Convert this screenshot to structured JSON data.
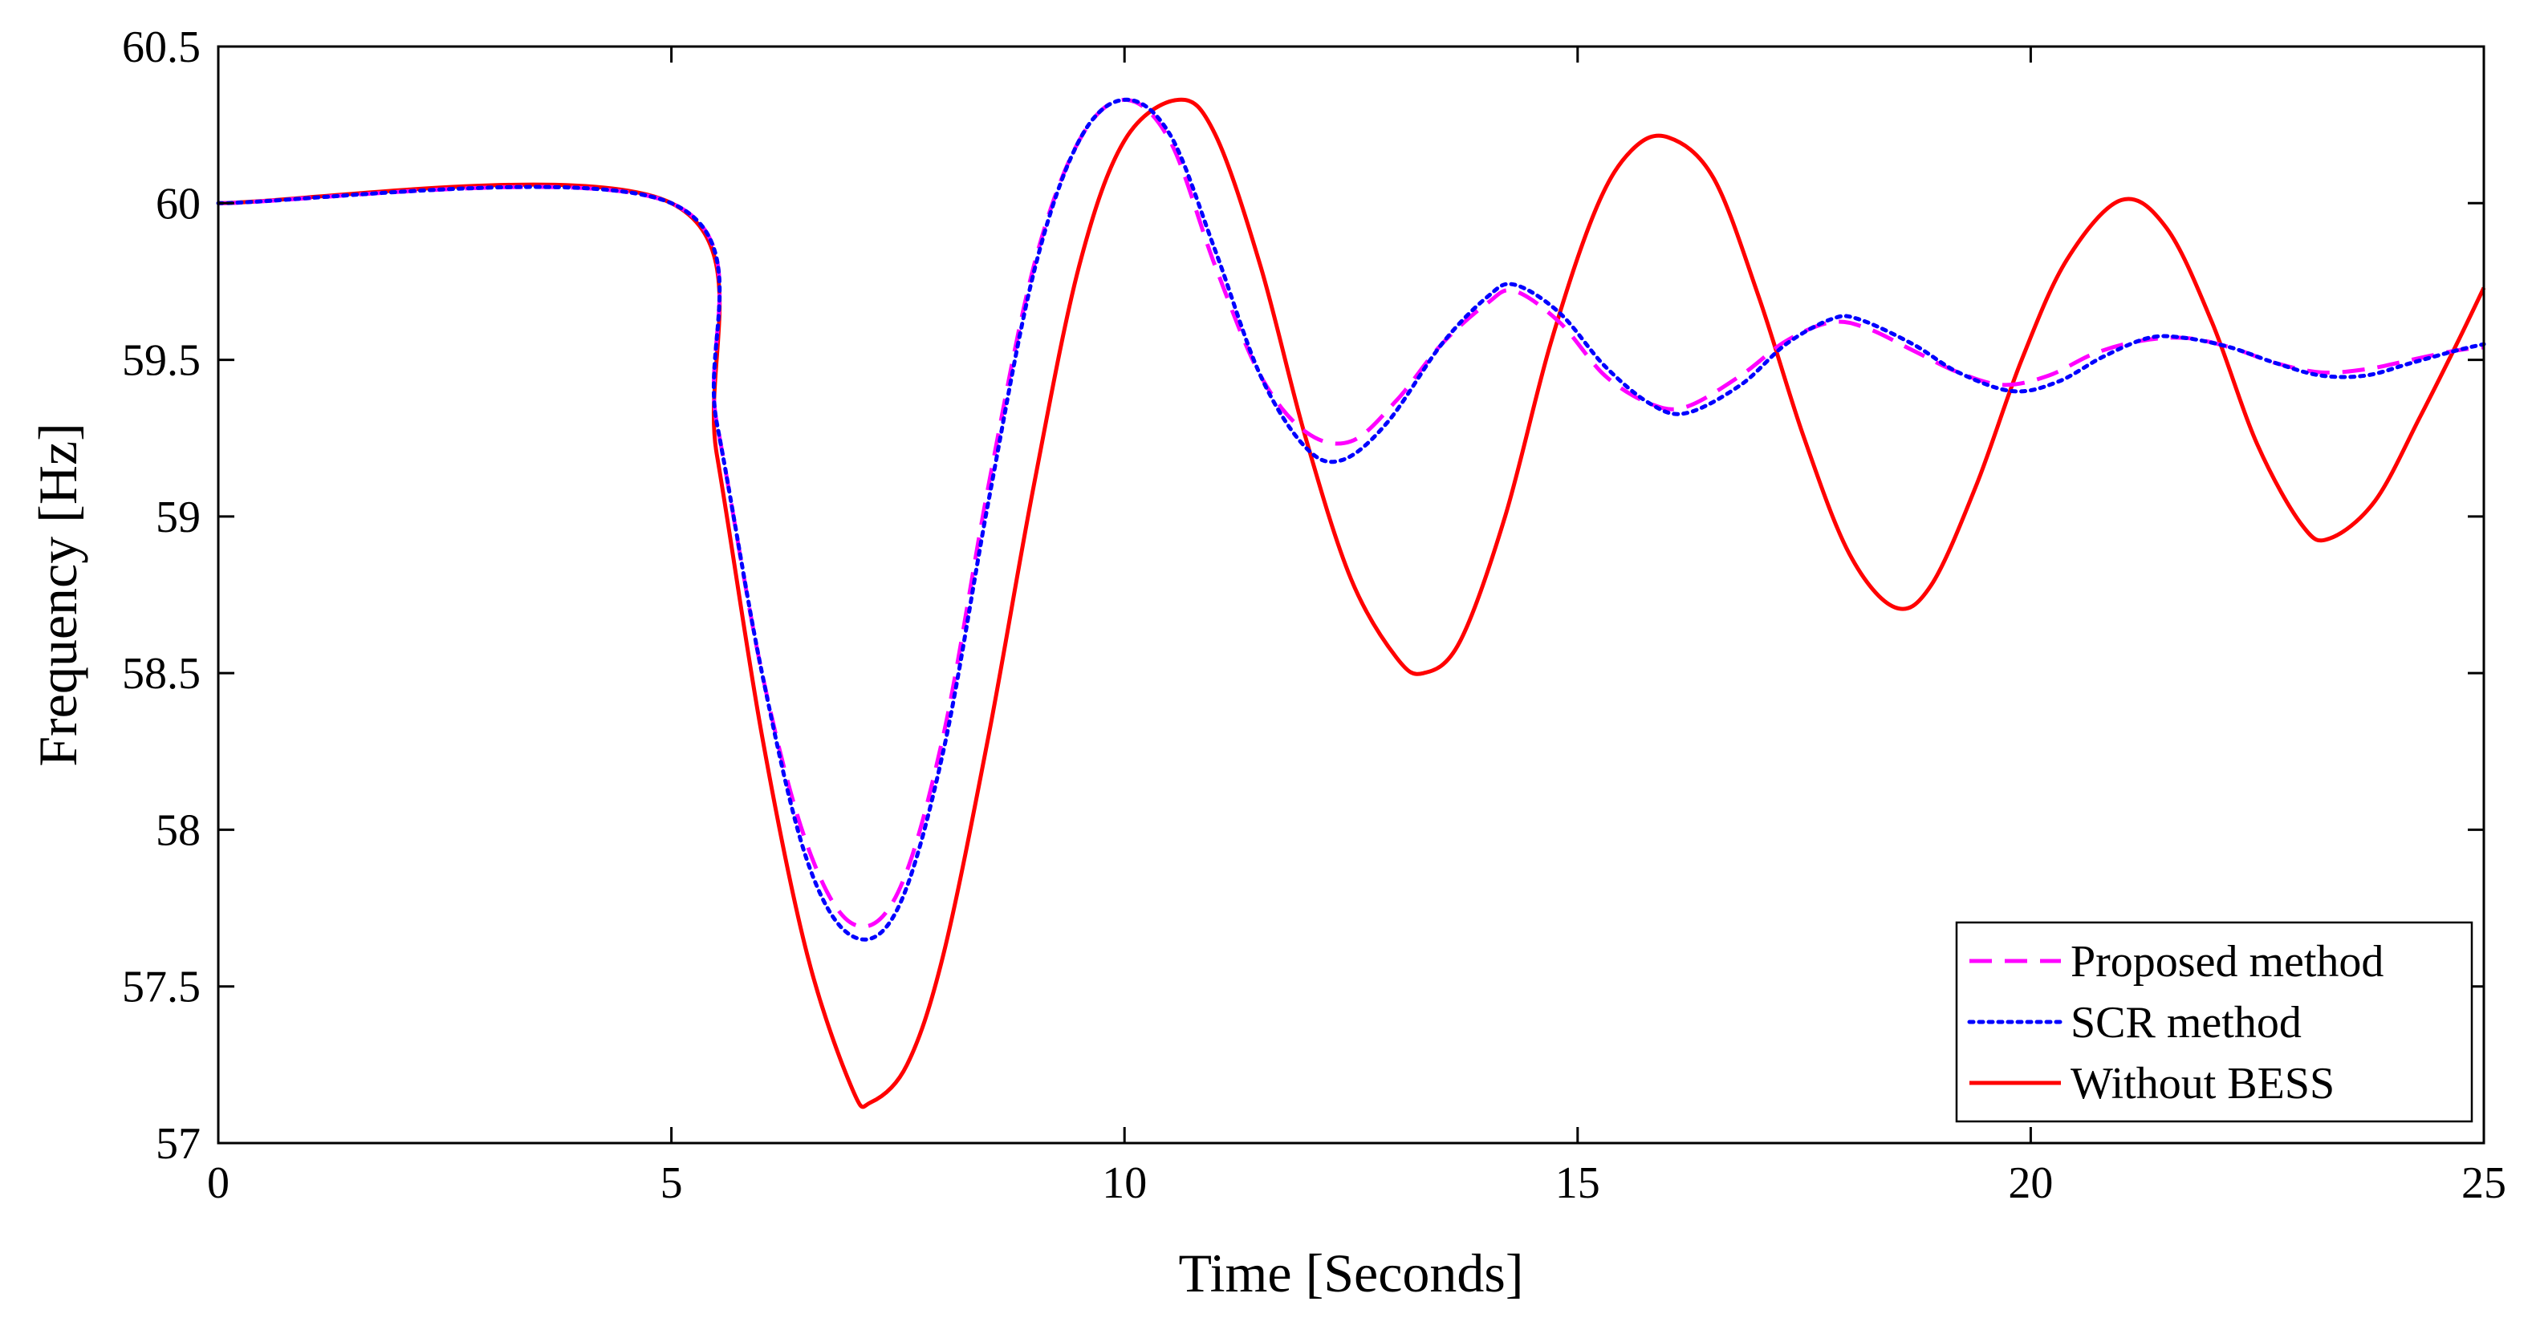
{
  "chart_data": {
    "type": "line",
    "title": "",
    "xlabel": "Time [Seconds]",
    "ylabel": "Frequency [Hz]",
    "xlim": [
      0,
      25
    ],
    "ylim": [
      57,
      60.5
    ],
    "xticks": [
      0,
      5,
      10,
      15,
      20,
      25
    ],
    "yticks": [
      57,
      57.5,
      58,
      58.5,
      59,
      59.5,
      60,
      60.5
    ],
    "grid": false,
    "legend_position": "bottom-right",
    "series": [
      {
        "name": "Proposed method",
        "color": "#ff00ff",
        "style": "dashed",
        "points": [
          [
            0,
            60
          ],
          [
            5,
            60
          ],
          [
            5.5,
            59.3
          ],
          [
            6,
            58.5
          ],
          [
            6.5,
            57.95
          ],
          [
            7,
            57.7
          ],
          [
            7.5,
            57.8
          ],
          [
            8,
            58.3
          ],
          [
            8.5,
            59.1
          ],
          [
            9,
            59.8
          ],
          [
            9.5,
            60.2
          ],
          [
            10,
            60.33
          ],
          [
            10.5,
            60.2
          ],
          [
            11,
            59.8
          ],
          [
            11.5,
            59.45
          ],
          [
            12,
            59.27
          ],
          [
            12.5,
            59.24
          ],
          [
            13,
            59.37
          ],
          [
            13.5,
            59.55
          ],
          [
            14,
            59.68
          ],
          [
            14.3,
            59.72
          ],
          [
            14.8,
            59.62
          ],
          [
            15.3,
            59.45
          ],
          [
            15.8,
            59.36
          ],
          [
            16.2,
            59.35
          ],
          [
            16.8,
            59.45
          ],
          [
            17.3,
            59.56
          ],
          [
            17.8,
            59.62
          ],
          [
            18.2,
            59.6
          ],
          [
            18.7,
            59.53
          ],
          [
            19.2,
            59.46
          ],
          [
            19.7,
            59.42
          ],
          [
            20.2,
            59.45
          ],
          [
            20.7,
            59.52
          ],
          [
            21.2,
            59.56
          ],
          [
            21.7,
            59.57
          ],
          [
            22.2,
            59.54
          ],
          [
            22.7,
            59.49
          ],
          [
            23.2,
            59.46
          ],
          [
            23.7,
            59.47
          ],
          [
            24.2,
            59.5
          ],
          [
            24.7,
            59.53
          ],
          [
            25,
            59.54
          ]
        ]
      },
      {
        "name": "SCR method",
        "color": "#0000ff",
        "style": "dotted",
        "points": [
          [
            0,
            60
          ],
          [
            5,
            60
          ],
          [
            5.5,
            59.3
          ],
          [
            6,
            58.5
          ],
          [
            6.5,
            57.9
          ],
          [
            7,
            57.66
          ],
          [
            7.5,
            57.75
          ],
          [
            8,
            58.25
          ],
          [
            8.5,
            59.05
          ],
          [
            9,
            59.78
          ],
          [
            9.5,
            60.2
          ],
          [
            10,
            60.33
          ],
          [
            10.5,
            60.22
          ],
          [
            11,
            59.85
          ],
          [
            11.5,
            59.45
          ],
          [
            12,
            59.22
          ],
          [
            12.4,
            59.18
          ],
          [
            12.9,
            59.3
          ],
          [
            13.5,
            59.55
          ],
          [
            14,
            59.7
          ],
          [
            14.3,
            59.74
          ],
          [
            14.8,
            59.65
          ],
          [
            15.3,
            59.48
          ],
          [
            15.8,
            59.36
          ],
          [
            16.2,
            59.33
          ],
          [
            16.8,
            59.42
          ],
          [
            17.3,
            59.55
          ],
          [
            17.8,
            59.63
          ],
          [
            18.1,
            59.63
          ],
          [
            18.7,
            59.55
          ],
          [
            19.2,
            59.46
          ],
          [
            19.8,
            59.4
          ],
          [
            20.3,
            59.43
          ],
          [
            20.8,
            59.51
          ],
          [
            21.3,
            59.57
          ],
          [
            21.7,
            59.57
          ],
          [
            22.2,
            59.54
          ],
          [
            22.7,
            59.49
          ],
          [
            23.2,
            59.45
          ],
          [
            23.7,
            59.45
          ],
          [
            24.2,
            59.49
          ],
          [
            24.7,
            59.53
          ],
          [
            25,
            59.55
          ]
        ]
      },
      {
        "name": "Without BESS",
        "color": "#ff0000",
        "style": "solid",
        "points": [
          [
            0,
            60
          ],
          [
            5,
            60
          ],
          [
            5.5,
            59.2
          ],
          [
            6,
            58.3
          ],
          [
            6.5,
            57.6
          ],
          [
            7,
            57.17
          ],
          [
            7.2,
            57.13
          ],
          [
            7.6,
            57.25
          ],
          [
            8,
            57.6
          ],
          [
            8.5,
            58.3
          ],
          [
            9,
            59.1
          ],
          [
            9.5,
            59.8
          ],
          [
            10,
            60.2
          ],
          [
            10.6,
            60.33
          ],
          [
            11,
            60.22
          ],
          [
            11.5,
            59.8
          ],
          [
            12,
            59.25
          ],
          [
            12.5,
            58.8
          ],
          [
            13,
            58.55
          ],
          [
            13.3,
            58.5
          ],
          [
            13.7,
            58.6
          ],
          [
            14.2,
            59.0
          ],
          [
            14.7,
            59.55
          ],
          [
            15.2,
            59.98
          ],
          [
            15.6,
            60.17
          ],
          [
            16,
            60.21
          ],
          [
            16.5,
            60.08
          ],
          [
            17,
            59.7
          ],
          [
            17.5,
            59.25
          ],
          [
            18,
            58.88
          ],
          [
            18.5,
            58.71
          ],
          [
            18.9,
            58.78
          ],
          [
            19.4,
            59.1
          ],
          [
            19.9,
            59.5
          ],
          [
            20.4,
            59.82
          ],
          [
            21,
            60.01
          ],
          [
            21.5,
            59.92
          ],
          [
            22,
            59.62
          ],
          [
            22.5,
            59.23
          ],
          [
            23,
            58.97
          ],
          [
            23.3,
            58.93
          ],
          [
            23.8,
            59.05
          ],
          [
            24.3,
            59.32
          ],
          [
            24.7,
            59.55
          ],
          [
            25,
            59.73
          ]
        ]
      }
    ]
  }
}
